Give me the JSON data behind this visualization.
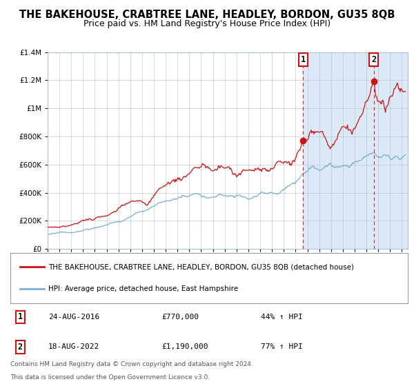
{
  "title": "THE BAKEHOUSE, CRABTREE LANE, HEADLEY, BORDON, GU35 8QB",
  "subtitle": "Price paid vs. HM Land Registry's House Price Index (HPI)",
  "red_label": "THE BAKEHOUSE, CRABTREE LANE, HEADLEY, BORDON, GU35 8QB (detached house)",
  "blue_label": "HPI: Average price, detached house, East Hampshire",
  "annotation1_date": "24-AUG-2016",
  "annotation1_price": "£770,000",
  "annotation1_hpi": "44% ↑ HPI",
  "annotation2_date": "18-AUG-2022",
  "annotation2_price": "£1,190,000",
  "annotation2_hpi": "77% ↑ HPI",
  "footnote1": "Contains HM Land Registry data © Crown copyright and database right 2024.",
  "footnote2": "This data is licensed under the Open Government Licence v3.0.",
  "purchase1_year": 2016.63,
  "purchase1_value": 770000,
  "purchase2_year": 2022.63,
  "purchase2_value": 1190000,
  "ylim": [
    0,
    1400000
  ],
  "xlim_start": 1995.0,
  "xlim_end": 2025.5,
  "highlight_start": 2016.63,
  "highlight_end": 2025.5,
  "background_color": "#ffffff",
  "plot_bg_color": "#ffffff",
  "highlight_color": "#dce9f7",
  "grid_color": "#b0bec8",
  "red_color": "#cc1111",
  "blue_color": "#7aadcc",
  "title_fontsize": 10.5,
  "subtitle_fontsize": 9
}
